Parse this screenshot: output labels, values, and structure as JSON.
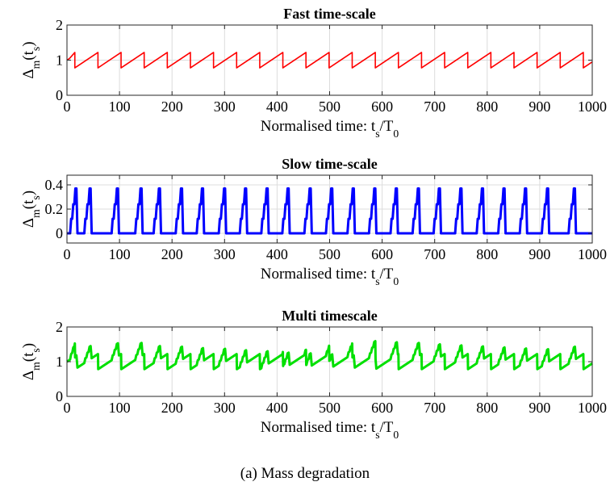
{
  "caption": "(a)  Mass degradation",
  "chart_data": [
    {
      "type": "line",
      "title": "Fast time-scale",
      "xlabel": "Normalised time: t_s/T_0",
      "ylabel": "Δ_m(t_s)",
      "xlim": [
        0,
        1000
      ],
      "ylim": [
        0,
        2
      ],
      "xticks": [
        0,
        100,
        200,
        300,
        400,
        500,
        600,
        700,
        800,
        900,
        1000
      ],
      "yticks": [
        0,
        1,
        2
      ],
      "grid": true,
      "series": [
        {
          "color": "#ff0000",
          "pattern": "sawtooth",
          "period": 44,
          "low": 0.78,
          "high": 1.22,
          "x": [
            0,
            5,
            15,
            15,
            59,
            59,
            103,
            103,
            147,
            147,
            191,
            191,
            235,
            235,
            279,
            279,
            323,
            323,
            367,
            367,
            411,
            411,
            455,
            455,
            499,
            499,
            543,
            543,
            587,
            587,
            631,
            631,
            675,
            675,
            719,
            719,
            763,
            763,
            807,
            807,
            851,
            851,
            895,
            895,
            939,
            939,
            983,
            983,
            1000
          ],
          "y": [
            1.0,
            1.05,
            1.22,
            0.78,
            1.22,
            0.78,
            1.22,
            0.78,
            1.22,
            0.78,
            1.22,
            0.78,
            1.22,
            0.78,
            1.22,
            0.78,
            1.22,
            0.78,
            1.22,
            0.78,
            1.22,
            0.78,
            1.22,
            0.78,
            1.22,
            0.78,
            1.22,
            0.78,
            1.22,
            0.78,
            1.22,
            0.78,
            1.22,
            0.78,
            1.22,
            0.78,
            1.22,
            0.78,
            1.22,
            0.78,
            1.22,
            0.78,
            1.22,
            0.78,
            1.22,
            0.78,
            1.22,
            0.78,
            0.95
          ]
        }
      ]
    },
    {
      "type": "line",
      "title": "Slow time-scale",
      "xlabel": "Normalised time: t_s/T_0",
      "ylabel": "Δ_m(t_s)",
      "xlim": [
        0,
        1000
      ],
      "ylim": [
        -0.08,
        0.48
      ],
      "xticks": [
        0,
        100,
        200,
        300,
        400,
        500,
        600,
        700,
        800,
        900,
        1000
      ],
      "yticks": [
        0,
        0.2,
        0.4
      ],
      "grid": true,
      "series": [
        {
          "color": "#0000ff",
          "pattern": "stepped pulses",
          "pulse_starts": [
            6,
            33,
            85,
            130,
            165,
            207,
            247,
            289,
            329,
            370,
            410,
            452,
            493,
            534,
            575,
            616,
            658,
            698,
            739,
            780,
            821,
            862,
            904,
            955
          ],
          "pulse_heights": [
            0.12,
            0.24,
            0.37
          ]
        }
      ]
    },
    {
      "type": "line",
      "title": "Multi timescale",
      "xlabel": "Normalised time: t_s/T_0",
      "ylabel": "Δ_m(t_s)",
      "xlim": [
        0,
        1000
      ],
      "ylim": [
        0,
        2
      ],
      "xticks": [
        0,
        100,
        200,
        300,
        400,
        500,
        600,
        700,
        800,
        900,
        1000
      ],
      "yticks": [
        0,
        1,
        2
      ],
      "grid": true,
      "series": [
        {
          "color": "#00e000",
          "pattern": "sum of fast and slow series"
        }
      ]
    }
  ]
}
